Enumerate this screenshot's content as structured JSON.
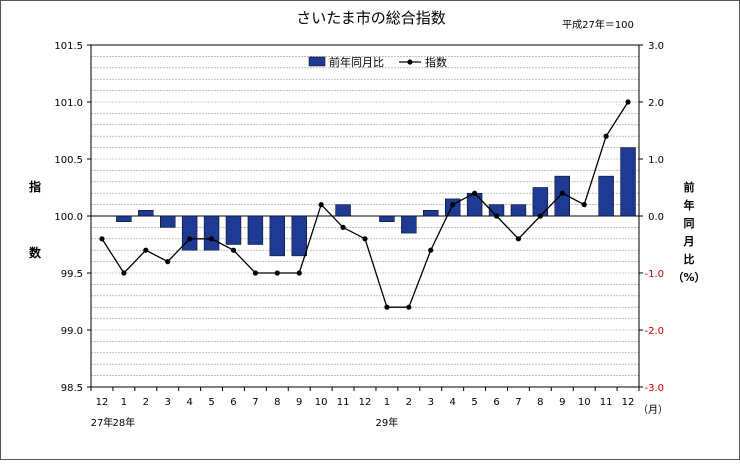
{
  "chart_data": {
    "type": "bar+line",
    "title": "さいたま市の総合指数",
    "base_note": "平成27年＝100",
    "ylabel_left": [
      "指",
      "数"
    ],
    "ylabel_right": [
      "前",
      "年",
      "同",
      "月",
      "比",
      "（%）"
    ],
    "x_unit": "（月）",
    "categories": [
      "12",
      "1",
      "2",
      "3",
      "4",
      "5",
      "6",
      "7",
      "8",
      "9",
      "10",
      "11",
      "12",
      "1",
      "2",
      "3",
      "4",
      "5",
      "6",
      "7",
      "8",
      "9",
      "10",
      "11",
      "12"
    ],
    "year_labels": [
      {
        "text": "27年",
        "at": 0
      },
      {
        "text": "28年",
        "at": 1
      },
      {
        "text": "29年",
        "at": 13
      }
    ],
    "left_axis": {
      "min": 98.5,
      "max": 101.5,
      "ticks": [
        "98.5",
        "99.0",
        "99.5",
        "100.0",
        "100.5",
        "101.0",
        "101.5"
      ]
    },
    "right_axis": {
      "min": -3.0,
      "max": 3.0,
      "ticks": [
        "-3.0",
        "-2.0",
        "-1.0",
        "0.0",
        "1.0",
        "2.0",
        "3.0"
      ]
    },
    "series": [
      {
        "name": "前年同月比",
        "type": "bar",
        "axis": "right",
        "color": "#1f3a93",
        "values": [
          null,
          -0.1,
          0.1,
          -0.2,
          -0.6,
          -0.6,
          -0.5,
          -0.5,
          -0.7,
          -0.7,
          null,
          0.2,
          null,
          -0.1,
          -0.3,
          0.1,
          0.3,
          0.4,
          0.2,
          0.2,
          0.5,
          0.7,
          null,
          0.7,
          1.2
        ]
      },
      {
        "name": "指数",
        "type": "line",
        "axis": "left",
        "color": "#000000",
        "values": [
          99.8,
          99.5,
          99.7,
          99.6,
          99.8,
          99.8,
          99.7,
          99.5,
          99.5,
          99.5,
          100.1,
          99.9,
          99.8,
          99.2,
          99.2,
          99.7,
          100.1,
          100.2,
          100.0,
          99.8,
          100.0,
          100.2,
          100.1,
          100.7,
          101.0
        ]
      }
    ],
    "legend_position": "top-center",
    "grid": true
  }
}
